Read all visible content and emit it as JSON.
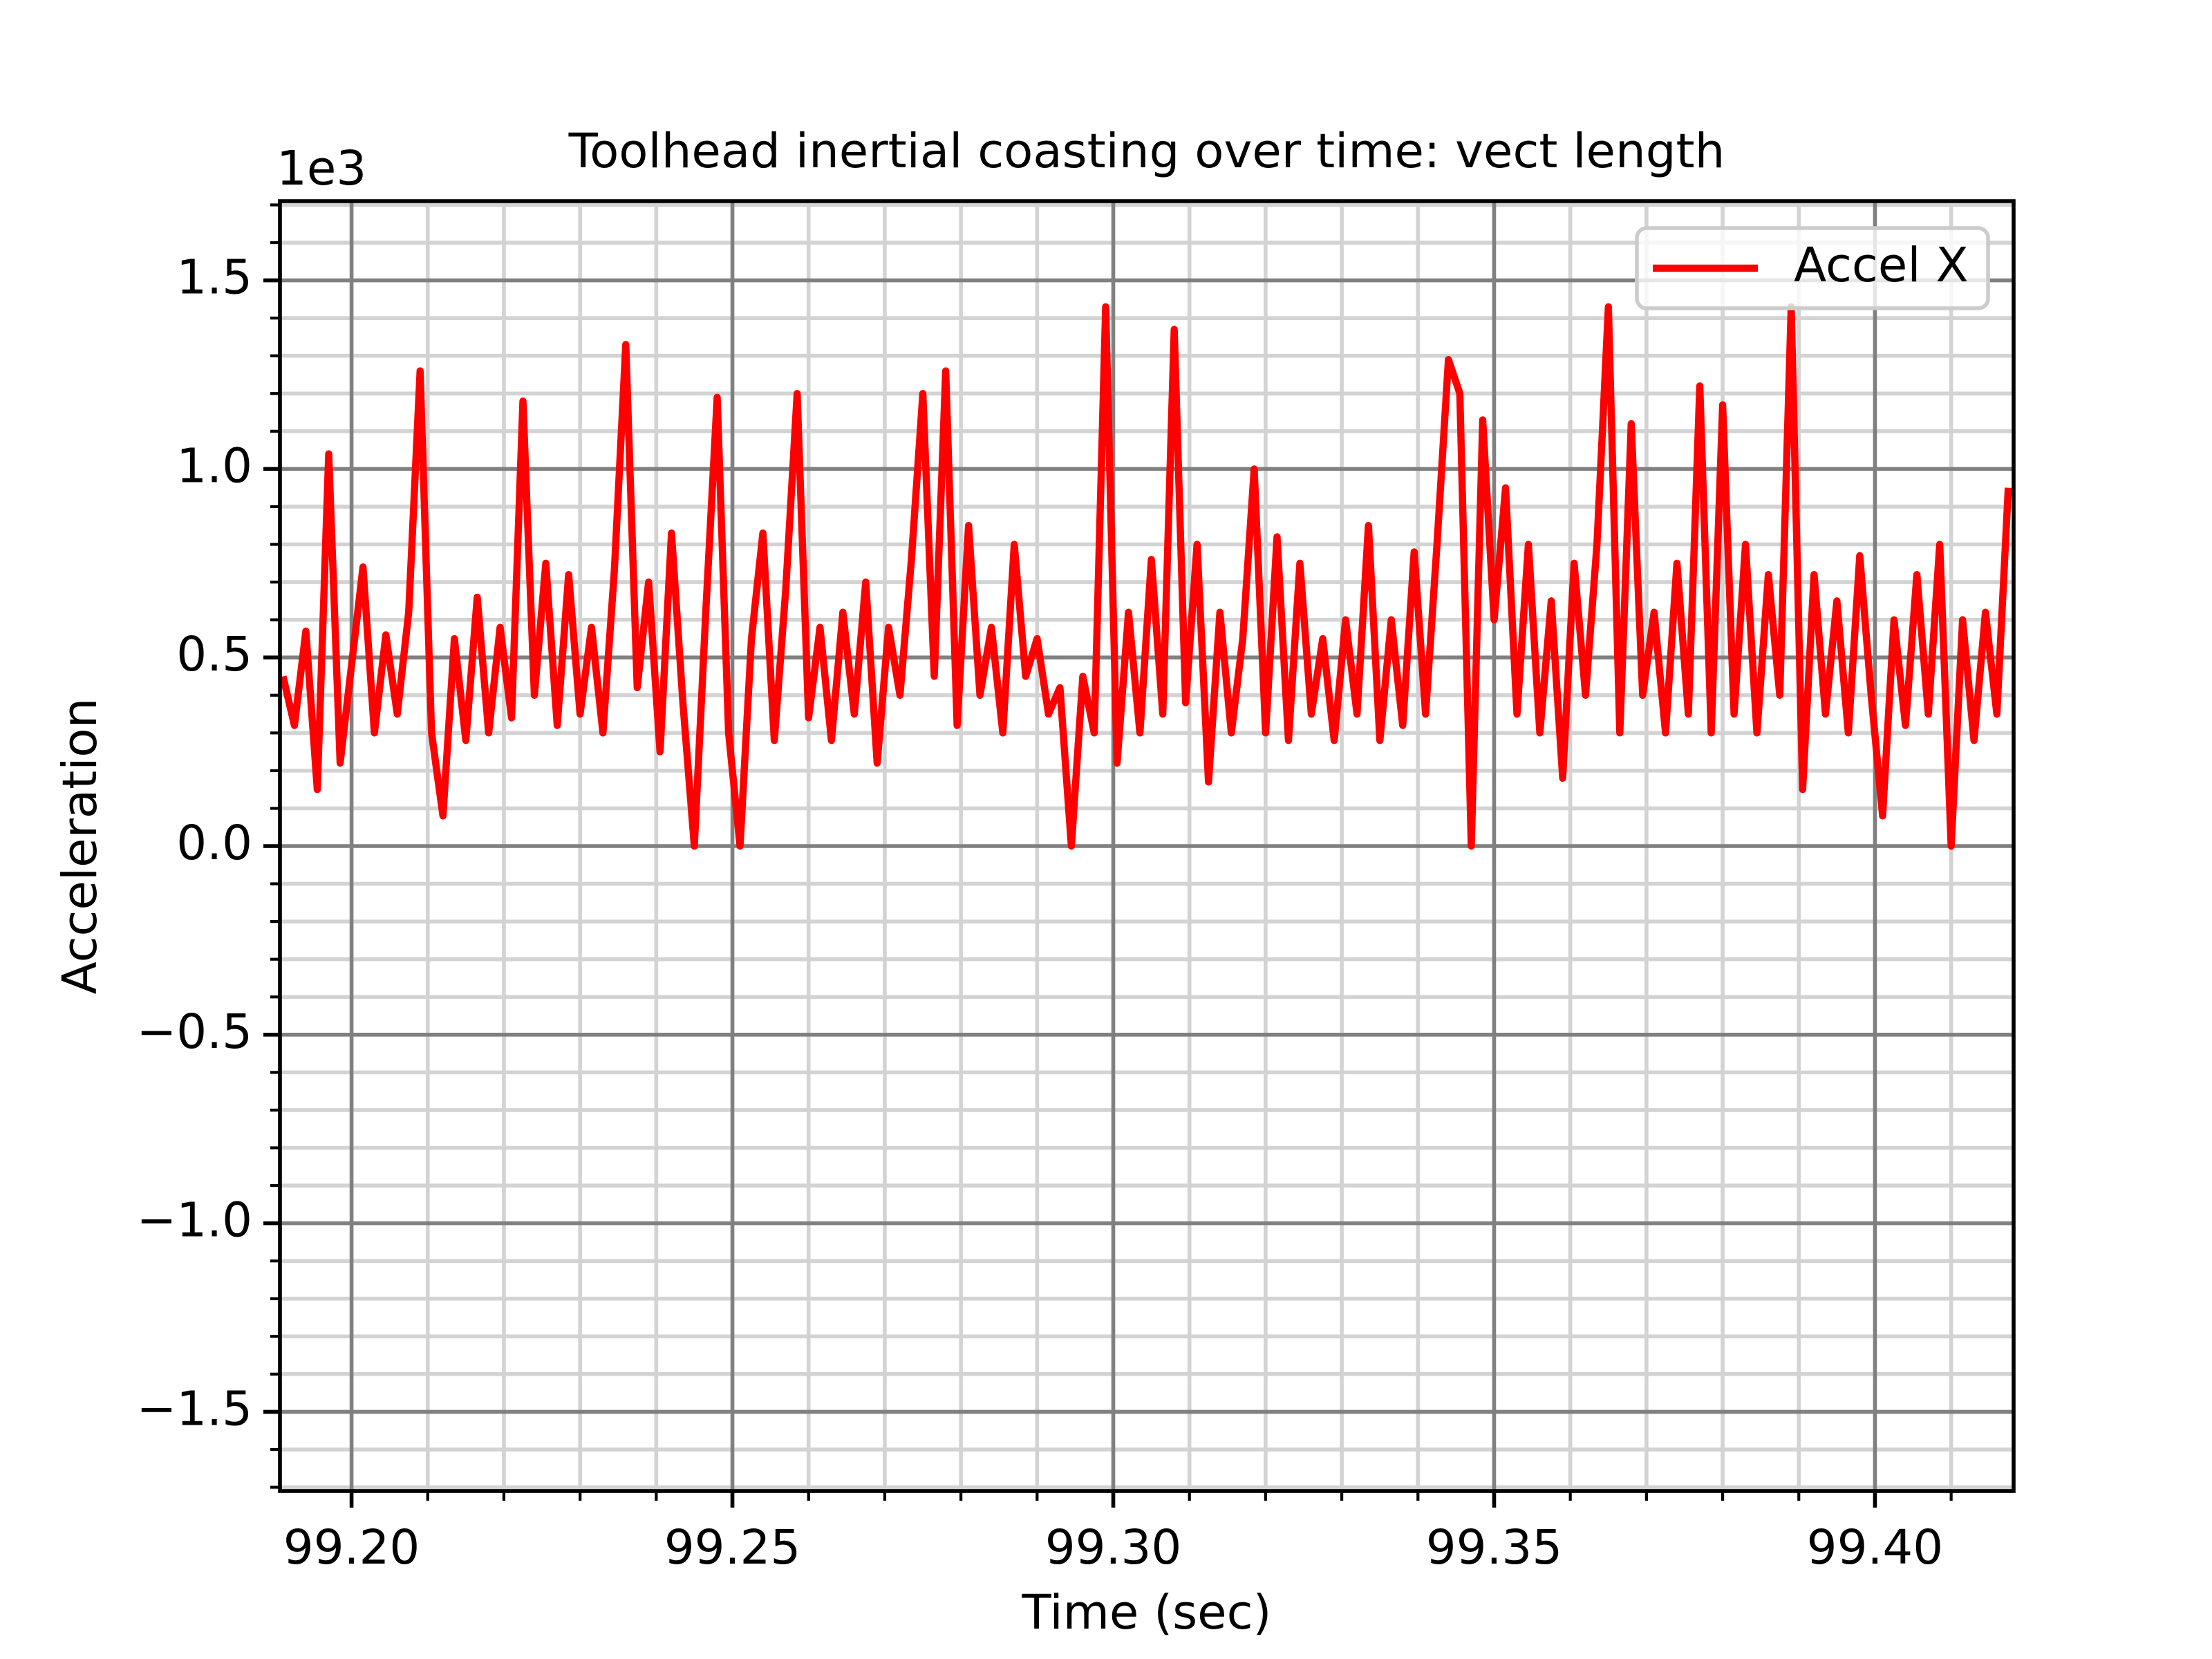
{
  "chart_data": {
    "type": "line",
    "title": "Toolhead inertial coasting over time: vect length",
    "xlabel": "Time (sec)",
    "ylabel": "Acceleration",
    "y_offset_label": "1e3",
    "legend": "upper right",
    "grid": true,
    "xlim": [
      99.1906,
      99.4182
    ],
    "ylim": [
      -1.71,
      1.71
    ],
    "xticks": [
      {
        "value": 99.2,
        "label": "99.20"
      },
      99.25,
      {
        "value": 99.3,
        "label": "99.30"
      },
      99.35,
      {
        "value": 99.4,
        "label": "99.40"
      }
    ],
    "yticks": [
      {
        "value": -1.5,
        "label": "−1.5"
      },
      {
        "value": -1,
        "label": "−1.0"
      },
      {
        "value": -0.5,
        "label": "−0.5"
      },
      {
        "value": 0,
        "label": "0.0"
      },
      0.5,
      {
        "value": 1,
        "label": "1.0"
      },
      1.5
    ],
    "xticks_minor": [
      99.21,
      99.22,
      99.23,
      99.24,
      99.26,
      99.27,
      99.28,
      99.29,
      99.31,
      99.32,
      99.33,
      99.34,
      99.36,
      99.37,
      99.38,
      99.39,
      99.41
    ],
    "yticks_minor": [
      -1.7,
      -1.6,
      -1.4,
      -1.3,
      -1.2,
      -1.1,
      -0.9,
      -0.8,
      -0.7,
      -0.6,
      -0.4,
      -0.3,
      -0.2,
      -0.1,
      0.1,
      0.2,
      0.3,
      0.4,
      0.6,
      0.7,
      0.8,
      0.9,
      1.1,
      1.2,
      1.3,
      1.4,
      1.6,
      1.7
    ],
    "x": [
      99.191,
      99.1925,
      99.194,
      99.1955,
      99.197,
      99.1985,
      99.2,
      99.2015,
      99.203,
      99.2045,
      99.206,
      99.2075,
      99.209,
      99.2105,
      99.212,
      99.2135,
      99.215,
      99.2165,
      99.218,
      99.2195,
      99.221,
      99.2225,
      99.224,
      99.2255,
      99.227,
      99.2285,
      99.23,
      99.2315,
      99.233,
      99.2345,
      99.236,
      99.2375,
      99.239,
      99.2405,
      99.242,
      99.2435,
      99.245,
      99.2465,
      99.248,
      99.2495,
      99.251,
      99.2525,
      99.254,
      99.2555,
      99.257,
      99.2585,
      99.26,
      99.2615,
      99.263,
      99.2645,
      99.266,
      99.2675,
      99.269,
      99.2705,
      99.272,
      99.2735,
      99.275,
      99.2765,
      99.278,
      99.2795,
      99.281,
      99.2825,
      99.284,
      99.2855,
      99.287,
      99.2885,
      99.29,
      99.2915,
      99.293,
      99.2945,
      99.296,
      99.2975,
      99.299,
      99.3005,
      99.302,
      99.3035,
      99.305,
      99.3065,
      99.308,
      99.3095,
      99.311,
      99.3125,
      99.314,
      99.3155,
      99.317,
      99.3185,
      99.32,
      99.3215,
      99.323,
      99.3245,
      99.326,
      99.3275,
      99.329,
      99.3305,
      99.332,
      99.3335,
      99.335,
      99.3365,
      99.338,
      99.3395,
      99.341,
      99.3425,
      99.344,
      99.3455,
      99.347,
      99.3485,
      99.35,
      99.3515,
      99.353,
      99.3545,
      99.356,
      99.3575,
      99.359,
      99.3605,
      99.362,
      99.3635,
      99.365,
      99.3665,
      99.368,
      99.3695,
      99.371,
      99.3725,
      99.374,
      99.3755,
      99.377,
      99.3785,
      99.38,
      99.3815,
      99.383,
      99.3845,
      99.386,
      99.3875,
      99.389,
      99.3905,
      99.392,
      99.3935,
      99.395,
      99.3965,
      99.398,
      99.3995,
      99.401,
      99.4025,
      99.404,
      99.4055,
      99.407,
      99.4085,
      99.41,
      99.4115,
      99.413,
      99.4145,
      99.416,
      99.4175
    ],
    "series": [
      {
        "name": "Accel X",
        "color": "#ff0000",
        "values": [
          0.45,
          0.32,
          0.57,
          0.15,
          1.04,
          0.22,
          0.48,
          0.74,
          0.3,
          0.56,
          0.35,
          0.62,
          1.26,
          0.3,
          0.08,
          0.55,
          0.28,
          0.66,
          0.3,
          0.58,
          0.34,
          1.18,
          0.4,
          0.75,
          0.32,
          0.72,
          0.35,
          0.58,
          0.3,
          0.73,
          1.33,
          0.42,
          0.7,
          0.25,
          0.83,
          0.38,
          0.0,
          0.62,
          1.19,
          0.3,
          0.0,
          0.55,
          0.83,
          0.28,
          0.68,
          1.2,
          0.34,
          0.58,
          0.28,
          0.62,
          0.35,
          0.7,
          0.22,
          0.58,
          0.4,
          0.76,
          1.2,
          0.45,
          1.26,
          0.32,
          0.85,
          0.4,
          0.58,
          0.3,
          0.8,
          0.45,
          0.55,
          0.35,
          0.42,
          0.0,
          0.45,
          0.3,
          1.43,
          0.22,
          0.62,
          0.3,
          0.76,
          0.35,
          1.37,
          0.38,
          0.8,
          0.17,
          0.62,
          0.3,
          0.55,
          1.0,
          0.3,
          0.82,
          0.28,
          0.75,
          0.35,
          0.55,
          0.28,
          0.6,
          0.35,
          0.85,
          0.28,
          0.6,
          0.32,
          0.78,
          0.35,
          0.8,
          1.29,
          1.2,
          0.0,
          1.13,
          0.6,
          0.95,
          0.35,
          0.8,
          0.3,
          0.65,
          0.18,
          0.75,
          0.4,
          0.8,
          1.43,
          0.3,
          1.12,
          0.4,
          0.62,
          0.3,
          0.75,
          0.35,
          1.22,
          0.3,
          1.17,
          0.35,
          0.8,
          0.3,
          0.72,
          0.4,
          1.43,
          0.15,
          0.72,
          0.35,
          0.65,
          0.3,
          0.77,
          0.4,
          0.08,
          0.6,
          0.32,
          0.72,
          0.35,
          0.8,
          0.0,
          0.6,
          0.28,
          0.62,
          0.35,
          0.95
        ]
      }
    ]
  }
}
